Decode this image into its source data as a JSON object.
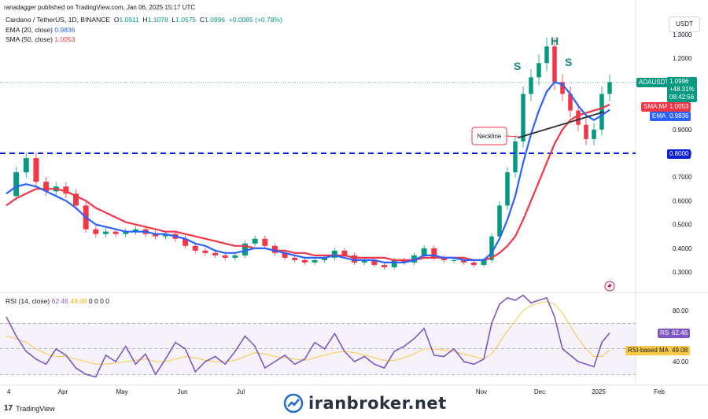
{
  "publisher": "ranadagger published on TradingView.com, Jan 06, 2025 15:17 UTC",
  "legend": {
    "symbol": "Cardano / TetherUS, 1D, BINANCE",
    "o_label": "O",
    "o": "1.0911",
    "h_label": "H",
    "h": "1.1078",
    "l_label": "L",
    "l": "1.0575",
    "c_label": "C",
    "c": "1.0996",
    "change": "+0.0085 (+0.78%)",
    "ema_label": "EMA (20, close)",
    "ema": "0.9836",
    "sma_label": "SMA (50, close)",
    "sma": "1.0053"
  },
  "currency": "USDT",
  "price_labels": {
    "symbol": "ADAUSDT",
    "price": "1.0996",
    "change_pct": "+48.31%",
    "countdown": "08:42:56",
    "sma_label": "SMA:MA",
    "sma": "1.0053",
    "ema_label": "EMA",
    "ema": "0.9836",
    "level": "0.8000"
  },
  "annotations": {
    "left_shoulder": "S",
    "head": "H",
    "right_shoulder": "S",
    "neckline": "Neckline"
  },
  "rsi": {
    "legend_label": "RSI (14, close)",
    "value": "62.46",
    "ma": "49.08",
    "extra": "0 0 0 0",
    "tag_rsi": "RSI",
    "tag_ma": "RSI-based MA"
  },
  "footer": {
    "tv": "TradingView",
    "brand": "iranbroker.net"
  },
  "colors": {
    "up": "#089981",
    "down": "#f23645",
    "ema": "#2962ff",
    "sma": "#f23645",
    "rsi": "#7e57c2",
    "rsi_ma": "#f7c948",
    "level": "#0d1fd6"
  },
  "chart_data": [
    {
      "type": "candlestick",
      "title": "Cardano / TetherUS, 1D, BINANCE",
      "x_ticks": [
        "4",
        "Apr",
        "May",
        "Jun",
        "Jul",
        "Nov",
        "Dec",
        "2025",
        "Feb"
      ],
      "y_ticks": [
        "1.3000",
        "1.2000",
        "0.9000",
        "0.8000",
        "0.7000",
        "0.6000",
        "0.5000",
        "0.4000",
        "0.3000"
      ],
      "ylim": [
        0.25,
        1.35
      ],
      "horizontal_level": 0.8,
      "last_price": 1.0996,
      "series": [
        {
          "name": "Price",
          "values": [
            0.62,
            0.72,
            0.78,
            0.68,
            0.64,
            0.66,
            0.63,
            0.58,
            0.48,
            0.46,
            0.47,
            0.46,
            0.47,
            0.48,
            0.46,
            0.45,
            0.46,
            0.44,
            0.41,
            0.39,
            0.38,
            0.37,
            0.36,
            0.37,
            0.42,
            0.44,
            0.41,
            0.38,
            0.36,
            0.35,
            0.34,
            0.35,
            0.36,
            0.39,
            0.37,
            0.34,
            0.35,
            0.33,
            0.32,
            0.35,
            0.34,
            0.37,
            0.4,
            0.36,
            0.35,
            0.35,
            0.34,
            0.33,
            0.35,
            0.45,
            0.58,
            0.72,
            0.85,
            1.05,
            1.12,
            1.18,
            1.25,
            1.1,
            1.05,
            0.98,
            0.92,
            0.86,
            0.9,
            1.05,
            1.0996
          ]
        },
        {
          "name": "EMA (20, close)",
          "values": [
            0.63,
            0.66,
            0.67,
            0.66,
            0.64,
            0.62,
            0.6,
            0.57,
            0.53,
            0.5,
            0.49,
            0.48,
            0.47,
            0.47,
            0.47,
            0.46,
            0.46,
            0.45,
            0.44,
            0.42,
            0.41,
            0.39,
            0.38,
            0.38,
            0.39,
            0.4,
            0.4,
            0.39,
            0.38,
            0.37,
            0.36,
            0.36,
            0.36,
            0.37,
            0.36,
            0.35,
            0.35,
            0.35,
            0.34,
            0.34,
            0.34,
            0.35,
            0.37,
            0.37,
            0.36,
            0.36,
            0.35,
            0.35,
            0.35,
            0.38,
            0.44,
            0.52,
            0.62,
            0.76,
            0.88,
            0.98,
            1.06,
            1.1,
            1.09,
            1.05,
            1.0,
            0.96,
            0.94,
            0.96,
            0.9836
          ]
        },
        {
          "name": "SMA (50, close)",
          "values": [
            0.58,
            0.61,
            0.63,
            0.65,
            0.65,
            0.65,
            0.64,
            0.62,
            0.6,
            0.57,
            0.55,
            0.53,
            0.51,
            0.5,
            0.49,
            0.48,
            0.47,
            0.47,
            0.46,
            0.45,
            0.44,
            0.43,
            0.42,
            0.41,
            0.41,
            0.4,
            0.4,
            0.39,
            0.39,
            0.38,
            0.38,
            0.37,
            0.37,
            0.37,
            0.37,
            0.36,
            0.36,
            0.36,
            0.36,
            0.35,
            0.35,
            0.35,
            0.36,
            0.36,
            0.36,
            0.36,
            0.36,
            0.35,
            0.35,
            0.36,
            0.38,
            0.41,
            0.45,
            0.52,
            0.6,
            0.68,
            0.76,
            0.84,
            0.9,
            0.94,
            0.96,
            0.97,
            0.98,
            0.99,
            1.0053
          ]
        }
      ]
    },
    {
      "type": "line",
      "title": "RSI (14, close)",
      "y_ticks": [
        "80.00",
        "40.00"
      ],
      "ylim": [
        10,
        95
      ],
      "bands": [
        70,
        50,
        30
      ],
      "series": [
        {
          "name": "RSI",
          "values": [
            75,
            60,
            48,
            42,
            38,
            50,
            45,
            35,
            30,
            28,
            45,
            40,
            52,
            38,
            46,
            30,
            42,
            55,
            50,
            32,
            40,
            44,
            38,
            48,
            60,
            52,
            35,
            40,
            45,
            38,
            42,
            55,
            50,
            62,
            48,
            40,
            44,
            38,
            35,
            48,
            52,
            58,
            66,
            45,
            44,
            50,
            40,
            38,
            42,
            70,
            85,
            90,
            88,
            92,
            86,
            88,
            90,
            75,
            50,
            45,
            40,
            38,
            36,
            55,
            62.46
          ]
        },
        {
          "name": "RSI-based MA",
          "values": [
            60,
            58,
            55,
            50,
            46,
            44,
            44,
            42,
            40,
            38,
            38,
            39,
            40,
            41,
            42,
            40,
            40,
            42,
            44,
            43,
            41,
            40,
            40,
            41,
            44,
            47,
            46,
            44,
            43,
            42,
            41,
            43,
            45,
            47,
            48,
            47,
            45,
            43,
            41,
            41,
            43,
            46,
            50,
            50,
            49,
            48,
            46,
            44,
            42,
            46,
            55,
            64,
            72,
            80,
            84,
            86,
            87,
            85,
            78,
            68,
            58,
            50,
            44,
            44,
            49.08
          ]
        }
      ]
    }
  ]
}
